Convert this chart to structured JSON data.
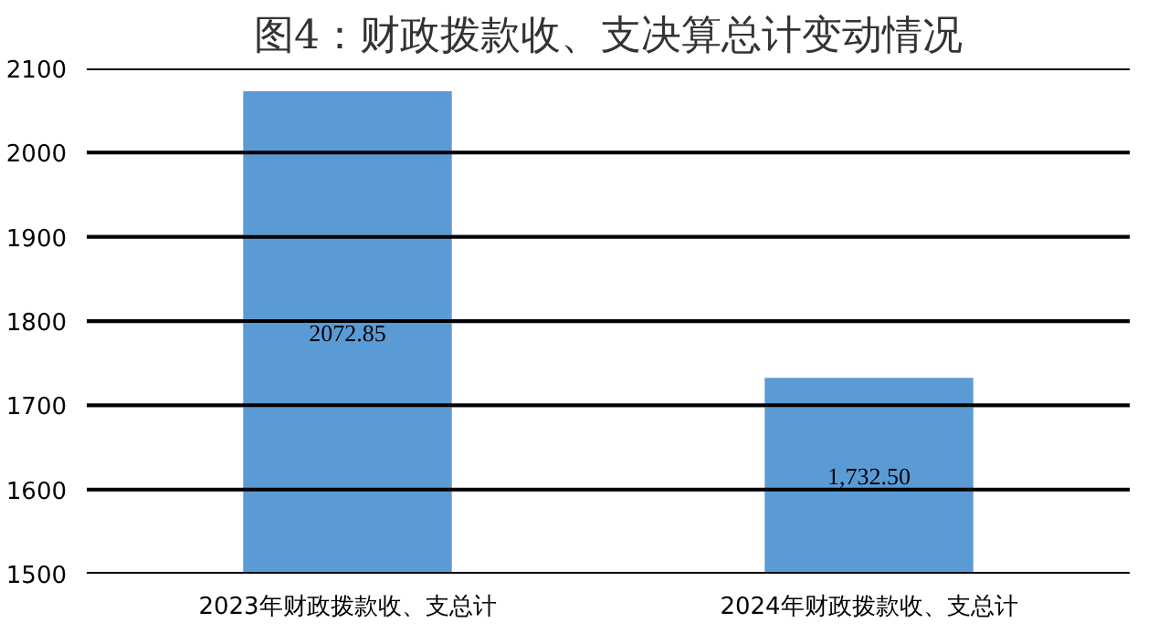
{
  "chart_data": {
    "type": "bar",
    "title": "图4：财政拨款收、支决算总计变动情况",
    "categories": [
      "2023年财政拨款收、支总计",
      "2024年财政拨款收、支总计"
    ],
    "values": [
      2072.85,
      1732.5
    ],
    "value_labels": [
      "2072.85",
      "1,732.50"
    ],
    "color": "#5b9bd5",
    "ylim": [
      1500,
      2100
    ],
    "yticks": [
      1500,
      1600,
      1700,
      1800,
      1900,
      2000,
      2100
    ],
    "grid": "y"
  }
}
